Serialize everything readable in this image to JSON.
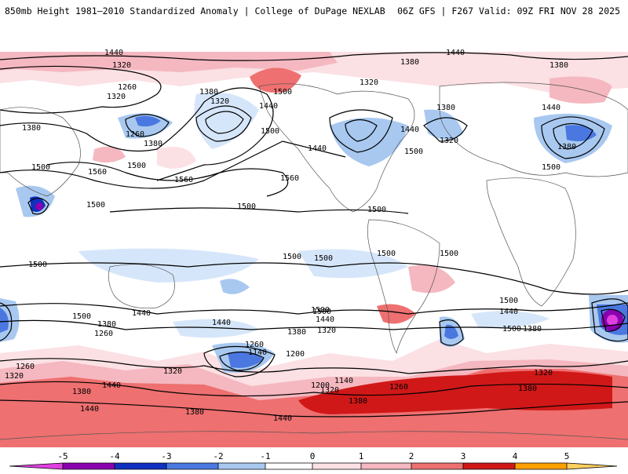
{
  "header": {
    "title_left": "850mb Height 1981–2010 Standardized Anomaly | College of DuPage NEXLAB",
    "title_right": "06Z GFS | F267 Valid: 09Z FRI NOV 28 2025"
  },
  "colorbar": {
    "ticks": [
      "-5",
      "-4",
      "-3",
      "-2",
      "-1",
      "0",
      "1",
      "2",
      "3",
      "4",
      "5"
    ],
    "colors": {
      "neg5": "#e040e0",
      "neg4": "#8a00b0",
      "neg3": "#1030c0",
      "neg2": "#4a78e0",
      "neg1": "#a8c8f0",
      "neg05": "#d6e6fa",
      "pos05": "#fbe0e4",
      "pos1": "#f5b8c0",
      "pos2": "#ee7070",
      "pos3": "#d01818",
      "pos4": "#ffa000",
      "pos5": "#ffd060"
    }
  },
  "map": {
    "contour_labels": [
      {
        "text": "1440"
      },
      {
        "text": "1320"
      },
      {
        "text": "1260"
      },
      {
        "text": "1320"
      },
      {
        "text": "1380"
      },
      {
        "text": "1380"
      },
      {
        "text": "1320"
      },
      {
        "text": "1440"
      },
      {
        "text": "1260"
      },
      {
        "text": "1380"
      },
      {
        "text": "1500"
      },
      {
        "text": "1500"
      },
      {
        "text": "1560"
      },
      {
        "text": "1500"
      },
      {
        "text": "1560"
      },
      {
        "text": "1500"
      },
      {
        "text": "1560"
      },
      {
        "text": "1500"
      },
      {
        "text": "1440"
      },
      {
        "text": "1380"
      },
      {
        "text": "1320"
      },
      {
        "text": "1500"
      },
      {
        "text": "1380"
      },
      {
        "text": "1320"
      },
      {
        "text": "1440"
      },
      {
        "text": "1440"
      },
      {
        "text": "1500"
      },
      {
        "text": "1380"
      },
      {
        "text": "1440"
      },
      {
        "text": "1500"
      },
      {
        "text": "1380"
      },
      {
        "text": "1500"
      },
      {
        "text": "1500"
      },
      {
        "text": "1500"
      },
      {
        "text": "1500"
      },
      {
        "text": "1500"
      },
      {
        "text": "1500"
      },
      {
        "text": "1500"
      },
      {
        "text": "1440"
      },
      {
        "text": "1380"
      },
      {
        "text": "1260"
      },
      {
        "text": "1440"
      },
      {
        "text": "1260"
      },
      {
        "text": "1320"
      },
      {
        "text": "1320"
      },
      {
        "text": "1380"
      },
      {
        "text": "1440"
      },
      {
        "text": "1440"
      },
      {
        "text": "1380"
      },
      {
        "text": "1260"
      },
      {
        "text": "1140"
      },
      {
        "text": "1200"
      },
      {
        "text": "1380"
      },
      {
        "text": "1320"
      },
      {
        "text": "1500"
      },
      {
        "text": "1440"
      },
      {
        "text": "1320"
      },
      {
        "text": "1380"
      },
      {
        "text": "1260"
      },
      {
        "text": "1140"
      },
      {
        "text": "1200"
      },
      {
        "text": "1380"
      },
      {
        "text": "1440"
      },
      {
        "text": "1320"
      },
      {
        "text": "1380"
      },
      {
        "text": "1440"
      },
      {
        "text": "1500"
      },
      {
        "text": "1500"
      },
      {
        "text": "1500"
      }
    ]
  }
}
